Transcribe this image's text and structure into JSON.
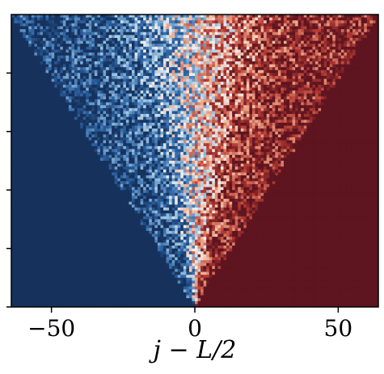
{
  "chart_data": {
    "type": "heatmap",
    "xlabel": "j − L/2",
    "ylabel": "",
    "title": "",
    "xlim": [
      -64,
      64
    ],
    "xticks": [
      -50,
      0,
      50
    ],
    "xtick_labels": [
      "−50",
      "0",
      "50"
    ],
    "y_tick_count": 5,
    "ytick_labels": [],
    "grid": false,
    "legend": "none",
    "colormap": {
      "name": "RdBu_r",
      "low_color": "#16325c",
      "mid_color": "#f4f1ee",
      "high_color": "#5e1520"
    },
    "description_of_field": {
      "x_cells": 128,
      "y_cells": 100,
      "light_cone_edge_x_at_top": 64,
      "left_of_cone_value": -1,
      "right_of_cone_value": 1,
      "inside_cone": "noisy values between -1 and 1, mean increasing with x"
    }
  }
}
